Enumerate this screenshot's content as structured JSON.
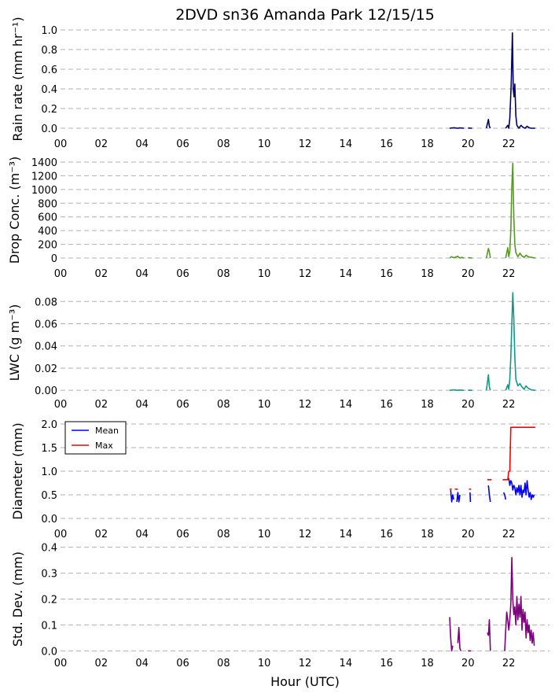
{
  "figure": {
    "title": "2DVD sn36 Amanda Park 12/15/15",
    "xlabel": "Hour (UTC)"
  },
  "chart_data": [
    {
      "type": "line",
      "ylabel": "Rain rate (mm hr⁻¹)",
      "ylim": [
        0,
        1.0
      ],
      "yticks": [
        "0.0",
        "0.2",
        "0.4",
        "0.6",
        "0.8",
        "1.0"
      ],
      "xticks": [
        "00",
        "02",
        "04",
        "06",
        "08",
        "10",
        "12",
        "14",
        "16",
        "18",
        "20",
        "22"
      ],
      "xlim": [
        0,
        24
      ],
      "grid": true,
      "series": [
        {
          "color": "#000066",
          "segments": [
            [
              [
                19.1,
                0
              ],
              [
                19.3,
                0.005
              ],
              [
                19.5,
                0
              ],
              [
                19.6,
                0.003
              ],
              [
                19.8,
                0
              ]
            ],
            [
              [
                20.0,
                0.002
              ],
              [
                20.2,
                0
              ]
            ],
            [
              [
                20.9,
                0
              ],
              [
                21.0,
                0.09
              ],
              [
                21.05,
                0.02
              ],
              [
                21.1,
                0
              ]
            ],
            [
              [
                21.85,
                0
              ],
              [
                21.95,
                0.03
              ],
              [
                22.0,
                0.0
              ],
              [
                22.05,
                0.1
              ],
              [
                22.12,
                0.45
              ],
              [
                22.18,
                0.97
              ],
              [
                22.22,
                0.4
              ],
              [
                22.26,
                0.32
              ],
              [
                22.3,
                0.45
              ],
              [
                22.35,
                0.13
              ],
              [
                22.4,
                0.03
              ],
              [
                22.5,
                0.0
              ],
              [
                22.6,
                0.03
              ],
              [
                22.7,
                0.01
              ],
              [
                22.8,
                0.0
              ],
              [
                22.9,
                0.02
              ],
              [
                23.0,
                0.005
              ],
              [
                23.1,
                0.0
              ],
              [
                23.3,
                0.0
              ]
            ]
          ]
        }
      ]
    },
    {
      "type": "line",
      "ylabel": "Drop Conc. (m⁻³)",
      "ylim": [
        0,
        1400
      ],
      "yticks": [
        "0",
        "200",
        "400",
        "600",
        "800",
        "1000",
        "1200",
        "1400"
      ],
      "xticks": [
        "00",
        "02",
        "04",
        "06",
        "08",
        "10",
        "12",
        "14",
        "16",
        "18",
        "20",
        "22"
      ],
      "xlim": [
        0,
        24
      ],
      "grid": true,
      "series": [
        {
          "color": "#559922",
          "segments": [
            [
              [
                19.1,
                0
              ],
              [
                19.2,
                20
              ],
              [
                19.3,
                5
              ],
              [
                19.5,
                25
              ],
              [
                19.6,
                0
              ],
              [
                19.7,
                10
              ],
              [
                19.8,
                0
              ]
            ],
            [
              [
                20.0,
                5
              ],
              [
                20.2,
                0
              ]
            ],
            [
              [
                20.9,
                0
              ],
              [
                21.0,
                140
              ],
              [
                21.05,
                90
              ],
              [
                21.1,
                0
              ]
            ],
            [
              [
                21.85,
                0
              ],
              [
                21.95,
                150
              ],
              [
                22.0,
                20
              ],
              [
                22.05,
                100
              ],
              [
                22.1,
                400
              ],
              [
                22.15,
                1050
              ],
              [
                22.2,
                1380
              ],
              [
                22.25,
                600
              ],
              [
                22.3,
                200
              ],
              [
                22.35,
                80
              ],
              [
                22.45,
                20
              ],
              [
                22.55,
                70
              ],
              [
                22.65,
                30
              ],
              [
                22.75,
                10
              ],
              [
                22.85,
                40
              ],
              [
                22.95,
                20
              ],
              [
                23.1,
                10
              ],
              [
                23.3,
                0
              ]
            ]
          ]
        }
      ]
    },
    {
      "type": "line",
      "ylabel": "LWC (g m⁻³)",
      "ylim": [
        -0.002,
        0.088
      ],
      "yticks": [
        "0.00",
        "0.02",
        "0.04",
        "0.06",
        "0.08"
      ],
      "ytick_values": [
        0,
        0.02,
        0.04,
        0.06,
        0.08
      ],
      "xticks": [
        "00",
        "02",
        "04",
        "06",
        "08",
        "10",
        "12",
        "14",
        "16",
        "18",
        "20",
        "22"
      ],
      "xlim": [
        0,
        24
      ],
      "grid": true,
      "series": [
        {
          "color": "#119988",
          "segments": [
            [
              [
                19.1,
                0
              ],
              [
                19.3,
                0.0004
              ],
              [
                19.5,
                0
              ],
              [
                19.6,
                0.0003
              ],
              [
                19.8,
                0
              ]
            ],
            [
              [
                20.0,
                0.0002
              ],
              [
                20.2,
                0
              ]
            ],
            [
              [
                20.9,
                0
              ],
              [
                21.0,
                0.014
              ],
              [
                21.05,
                0.003
              ],
              [
                21.1,
                0
              ]
            ],
            [
              [
                21.85,
                0
              ],
              [
                21.95,
                0.005
              ],
              [
                22.0,
                0.001
              ],
              [
                22.05,
                0.01
              ],
              [
                22.1,
                0.03
              ],
              [
                22.15,
                0.06
              ],
              [
                22.2,
                0.088
              ],
              [
                22.25,
                0.065
              ],
              [
                22.3,
                0.03
              ],
              [
                22.35,
                0.01
              ],
              [
                22.45,
                0.004
              ],
              [
                22.55,
                0.006
              ],
              [
                22.65,
                0.003
              ],
              [
                22.75,
                0.001
              ],
              [
                22.85,
                0.004
              ],
              [
                22.95,
                0.002
              ],
              [
                23.1,
                0.0005
              ],
              [
                23.3,
                0
              ]
            ]
          ]
        }
      ]
    },
    {
      "type": "line",
      "ylabel": "Diameter (mm)",
      "ylim": [
        -0.05,
        2.05
      ],
      "yticks": [
        "0.0",
        "0.5",
        "1.0",
        "1.5",
        "2.0"
      ],
      "ytick_values": [
        0,
        0.5,
        1.0,
        1.5,
        2.0
      ],
      "xticks": [
        "00",
        "02",
        "04",
        "06",
        "08",
        "10",
        "12",
        "14",
        "16",
        "18",
        "20",
        "22"
      ],
      "xlim": [
        0,
        24
      ],
      "grid": true,
      "legend": {
        "placement": "upper-left",
        "entries": [
          {
            "label": "Mean",
            "color": "#0000ff"
          },
          {
            "label": "Max",
            "color": "#ff0000"
          }
        ]
      },
      "series": [
        {
          "name": "Mean",
          "color": "#0000ff",
          "segments": [
            [
              [
                19.15,
                0.6
              ],
              [
                19.2,
                0.35
              ],
              [
                19.25,
                0.5
              ],
              [
                19.3,
                0.4
              ]
            ],
            [
              [
                19.45,
                0.35
              ],
              [
                19.5,
                0.55
              ],
              [
                19.55,
                0.35
              ],
              [
                19.6,
                0.5
              ]
            ],
            [
              [
                20.1,
                0.55
              ],
              [
                20.12,
                0.35
              ]
            ],
            [
              [
                21.0,
                0.7
              ],
              [
                21.05,
                0.5
              ],
              [
                21.1,
                0.35
              ]
            ],
            [
              [
                21.75,
                0.55
              ],
              [
                21.8,
                0.5
              ],
              [
                21.85,
                0.4
              ]
            ],
            [
              [
                22.0,
                0.85
              ],
              [
                22.05,
                0.7
              ],
              [
                22.1,
                0.8
              ],
              [
                22.15,
                0.75
              ],
              [
                22.2,
                0.6
              ],
              [
                22.25,
                0.7
              ],
              [
                22.3,
                0.65
              ],
              [
                22.35,
                0.5
              ],
              [
                22.4,
                0.65
              ],
              [
                22.45,
                0.55
              ],
              [
                22.5,
                0.7
              ],
              [
                22.55,
                0.5
              ],
              [
                22.6,
                0.7
              ],
              [
                22.65,
                0.45
              ],
              [
                22.7,
                0.6
              ],
              [
                22.75,
                0.55
              ],
              [
                22.8,
                0.75
              ],
              [
                22.85,
                0.5
              ],
              [
                22.9,
                0.8
              ],
              [
                22.95,
                0.6
              ],
              [
                23.0,
                0.45
              ],
              [
                23.05,
                0.55
              ],
              [
                23.1,
                0.4
              ],
              [
                23.15,
                0.5
              ],
              [
                23.2,
                0.45
              ],
              [
                23.25,
                0.5
              ]
            ]
          ]
        },
        {
          "name": "Max",
          "color": "#ff0000",
          "segments": [
            [
              [
                19.1,
                0.62
              ],
              [
                19.2,
                0.62
              ]
            ],
            [
              [
                19.35,
                0.62
              ],
              [
                19.5,
                0.62
              ]
            ],
            [
              [
                20.05,
                0.62
              ],
              [
                20.15,
                0.62
              ]
            ],
            [
              [
                20.95,
                0.82
              ],
              [
                21.15,
                0.82
              ]
            ],
            [
              [
                21.7,
                0.82
              ],
              [
                21.95,
                0.82
              ],
              [
                22.0,
                1.0
              ],
              [
                22.05,
                1.0
              ],
              [
                22.1,
                1.93
              ],
              [
                23.3,
                1.93
              ]
            ]
          ]
        }
      ]
    },
    {
      "type": "line",
      "ylabel": "Std. Dev. (mm)",
      "ylim": [
        -0.005,
        0.405
      ],
      "yticks": [
        "0.0",
        "0.1",
        "0.2",
        "0.3",
        "0.4"
      ],
      "ytick_values": [
        0,
        0.1,
        0.2,
        0.3,
        0.4
      ],
      "xticks": [
        "00",
        "02",
        "04",
        "06",
        "08",
        "10",
        "12",
        "14",
        "16",
        "18",
        "20",
        "22"
      ],
      "xlim": [
        0,
        24
      ],
      "grid": true,
      "series": [
        {
          "color": "#7f007f",
          "segments": [
            [
              [
                19.1,
                0.13
              ],
              [
                19.15,
                0.05
              ],
              [
                19.2,
                0.0
              ],
              [
                19.25,
                0.02
              ]
            ],
            [
              [
                19.5,
                0.03
              ],
              [
                19.55,
                0.09
              ],
              [
                19.6,
                0.01
              ],
              [
                19.65,
                0.0
              ]
            ],
            [
              [
                20.0,
                0.0
              ],
              [
                20.15,
                0.0
              ]
            ],
            [
              [
                20.95,
                0.07
              ],
              [
                21.0,
                0.06
              ],
              [
                21.05,
                0.12
              ],
              [
                21.1,
                0.0
              ]
            ],
            [
              [
                21.8,
                0.0
              ],
              [
                21.85,
                0.08
              ],
              [
                21.9,
                0.15
              ],
              [
                21.95,
                0.12
              ],
              [
                22.0,
                0.08
              ],
              [
                22.05,
                0.12
              ],
              [
                22.1,
                0.18
              ],
              [
                22.15,
                0.36
              ],
              [
                22.2,
                0.2
              ],
              [
                22.25,
                0.14
              ],
              [
                22.3,
                0.17
              ],
              [
                22.35,
                0.1
              ],
              [
                22.4,
                0.21
              ],
              [
                22.45,
                0.12
              ],
              [
                22.5,
                0.18
              ],
              [
                22.55,
                0.13
              ],
              [
                22.6,
                0.21
              ],
              [
                22.65,
                0.08
              ],
              [
                22.7,
                0.16
              ],
              [
                22.75,
                0.11
              ],
              [
                22.8,
                0.15
              ],
              [
                22.85,
                0.05
              ],
              [
                22.9,
                0.12
              ],
              [
                22.95,
                0.07
              ],
              [
                23.0,
                0.1
              ],
              [
                23.05,
                0.04
              ],
              [
                23.1,
                0.08
              ],
              [
                23.15,
                0.03
              ],
              [
                23.2,
                0.07
              ],
              [
                23.25,
                0.02
              ]
            ]
          ]
        }
      ]
    }
  ]
}
